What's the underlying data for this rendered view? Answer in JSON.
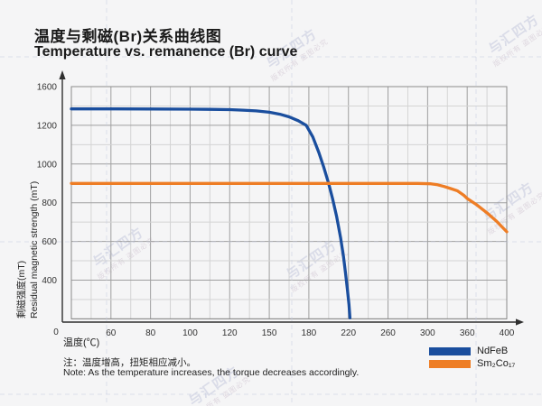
{
  "header": {
    "title_zh": "温度与剩磁(Br)关系曲线图",
    "title_en": "Temperature vs. remanence (Br) curve"
  },
  "chart_data": {
    "type": "line",
    "title_zh": "温度与剩磁(Br)关系曲线图",
    "title_en": "Temperature vs. remanence (Br) curve",
    "x_axis": {
      "label_zh": "温度(℃)",
      "origin_label": "0",
      "ticks": [
        0,
        60,
        80,
        100,
        120,
        150,
        180,
        220,
        260,
        300,
        360,
        400
      ]
    },
    "y_axis": {
      "label_zh": "剩磁强度(mT)",
      "label_en": "Residual magnetic strength (mT)",
      "ticks": [
        1600,
        1200,
        1000,
        800,
        600,
        400
      ]
    },
    "grid": true,
    "legend_position": "bottom-right",
    "series": [
      {
        "name": "NdFeB",
        "label": "NdFeB",
        "color": "#1a4e9e",
        "points": [
          [
            0,
            1370
          ],
          [
            40,
            1370
          ],
          [
            60,
            1370
          ],
          [
            80,
            1369
          ],
          [
            100,
            1367
          ],
          [
            110,
            1365
          ],
          [
            120,
            1362
          ],
          [
            130,
            1357
          ],
          [
            140,
            1349
          ],
          [
            150,
            1335
          ],
          [
            158,
            1315
          ],
          [
            165,
            1288
          ],
          [
            172,
            1248
          ],
          [
            178,
            1200
          ],
          [
            184,
            1140
          ],
          [
            190,
            1060
          ],
          [
            195,
            985
          ],
          [
            200,
            900
          ],
          [
            204,
            820
          ],
          [
            208,
            730
          ],
          [
            212,
            620
          ],
          [
            215,
            520
          ],
          [
            217,
            440
          ],
          [
            219,
            350
          ],
          [
            220.5,
            275
          ],
          [
            221.5,
            205
          ]
        ]
      },
      {
        "name": "Sm2Co17",
        "label": "Sm₂Co₁₇",
        "color": "#ee7d25",
        "points": [
          [
            0,
            900
          ],
          [
            60,
            900
          ],
          [
            120,
            900
          ],
          [
            180,
            900
          ],
          [
            240,
            900
          ],
          [
            290,
            900
          ],
          [
            305,
            898
          ],
          [
            315,
            893
          ],
          [
            325,
            884
          ],
          [
            335,
            873
          ],
          [
            345,
            862
          ],
          [
            355,
            838
          ],
          [
            360,
            822
          ],
          [
            370,
            788
          ],
          [
            380,
            748
          ],
          [
            390,
            703
          ],
          [
            400,
            650
          ]
        ]
      }
    ]
  },
  "note": {
    "line_zh": "注：温度增高，扭矩相应减小。",
    "line_en": "Note: As the temperature increases, the torque decreases accordingly."
  },
  "watermark": {
    "brand": "与汇四方",
    "notice": "版权所有 盗图必究"
  },
  "style": {
    "grid_minor_color": "#d4d4d4",
    "grid_major_color": "#9f9f9f",
    "axis_color": "#2f2f2f",
    "tick_label_color": "#333333",
    "guide_color": "#c7cde0"
  }
}
